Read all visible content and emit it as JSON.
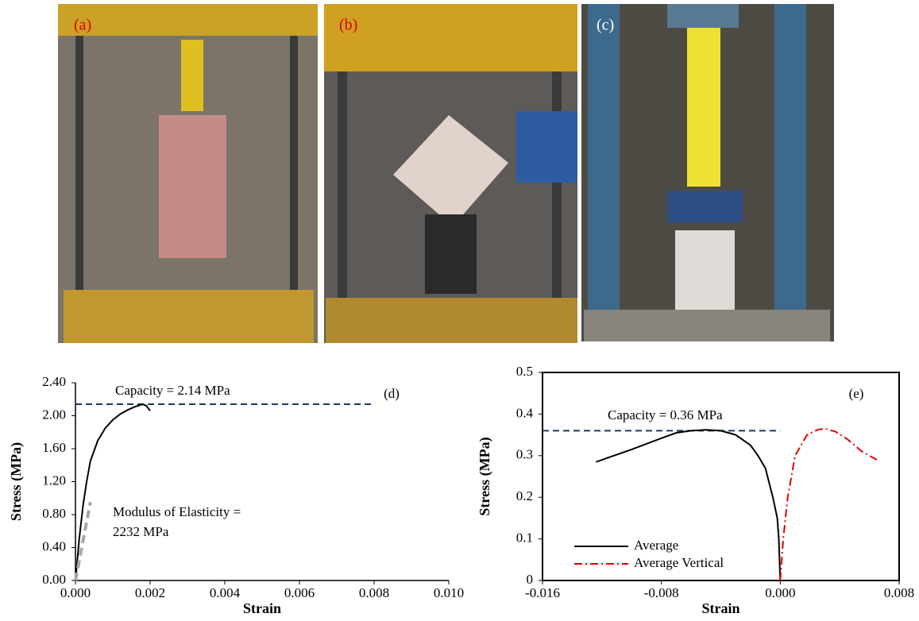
{
  "photos": {
    "labels": [
      "(a)",
      "(b)",
      "(c)"
    ]
  },
  "chart_data": [
    {
      "type": "line",
      "x_label": "Strain",
      "y_label": "Stress (MPa)",
      "xlim": [
        0,
        0.01
      ],
      "ylim": [
        0,
        2.4
      ],
      "xticks": [
        {
          "value": 0,
          "label": "0.000"
        },
        {
          "value": 0.002,
          "label": "0.002"
        },
        {
          "value": 0.004,
          "label": "0.004"
        },
        {
          "value": 0.006,
          "label": "0.006"
        },
        {
          "value": 0.008,
          "label": "0.008"
        },
        {
          "value": 0.01,
          "label": "0.010"
        }
      ],
      "yticks": [
        {
          "value": 0,
          "label": "0.00"
        },
        {
          "value": 0.4,
          "label": "0.40"
        },
        {
          "value": 0.8,
          "label": "0.80"
        },
        {
          "value": 1.2,
          "label": "1.20"
        },
        {
          "value": 1.6,
          "label": "1.60"
        },
        {
          "value": 2.0,
          "label": "2.00"
        },
        {
          "value": 2.4,
          "label": "2.40"
        }
      ],
      "frame": false,
      "legend": false,
      "series": [
        {
          "color": "#000000",
          "dash": "solid",
          "x": [
            0,
            0.0001,
            0.0002,
            0.0003,
            0.0004,
            0.0006,
            0.0008,
            0.001,
            0.0012,
            0.0014,
            0.0016,
            0.0018,
            0.0019,
            0.002
          ],
          "values": [
            0,
            0.5,
            0.9,
            1.2,
            1.45,
            1.7,
            1.85,
            1.95,
            2.02,
            2.07,
            2.11,
            2.14,
            2.12,
            2.06
          ]
        },
        {
          "color": "#a6a6a6",
          "dash": "dashed",
          "x": [
            0,
            0.0004
          ],
          "values": [
            0,
            0.95
          ]
        }
      ],
      "reference_line": {
        "y": 2.14,
        "x": [
          0,
          0.008
        ],
        "color": "#1f3864"
      },
      "annotations": [
        "Capacity = 2.14 MPa",
        "(d)",
        "Modulus of Elasticity =",
        "2232 MPa"
      ]
    },
    {
      "type": "line",
      "x_label": "Strain",
      "y_label": "Stress (MPa)",
      "xlim": [
        -0.016,
        0.008
      ],
      "ylim": [
        0,
        0.5
      ],
      "xticks": [
        {
          "value": -0.016,
          "label": "-0.016"
        },
        {
          "value": -0.008,
          "label": "-0.008"
        },
        {
          "value": 0,
          "label": "0.000"
        },
        {
          "value": 0.008,
          "label": "0.008"
        }
      ],
      "yticks": [
        0,
        0.1,
        0.2,
        0.3,
        0.4,
        0.5
      ],
      "frame": true,
      "legend": "lower left",
      "series": [
        {
          "name": "Average",
          "color": "#000000",
          "dash": "solid",
          "x": [
            -0.0124,
            -0.01,
            -0.008,
            -0.007,
            -0.006,
            -0.005,
            -0.004,
            -0.003,
            -0.002,
            -0.0015,
            -0.001,
            -0.0005,
            -0.0002,
            -0.0001,
            0
          ],
          "values": [
            0.285,
            0.315,
            0.342,
            0.355,
            0.36,
            0.362,
            0.36,
            0.35,
            0.325,
            0.3,
            0.27,
            0.2,
            0.15,
            0.1,
            0
          ]
        },
        {
          "name": "Average Vertical",
          "color": "#e00000",
          "dash": "dashdot",
          "x": [
            0,
            0.0002,
            0.0005,
            0.001,
            0.0018,
            0.0025,
            0.003,
            0.0037,
            0.0045,
            0.0055,
            0.0065
          ],
          "values": [
            0,
            0.1,
            0.2,
            0.3,
            0.35,
            0.362,
            0.365,
            0.358,
            0.34,
            0.31,
            0.29
          ]
        }
      ],
      "reference_line": {
        "y": 0.36,
        "x": [
          -0.016,
          0
        ],
        "color": "#1f3864"
      },
      "annotations": [
        "Capacity = 0.36 MPa",
        "(e)"
      ]
    }
  ]
}
